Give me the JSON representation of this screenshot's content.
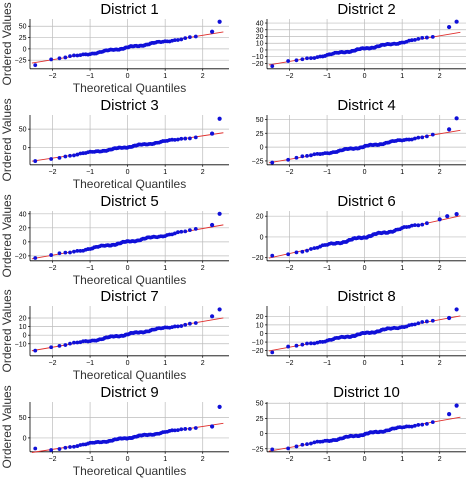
{
  "colors": {
    "points": "#1010d8",
    "fit_line": "#e0302e",
    "grid": "#bcbcbc",
    "axis": "#000000"
  },
  "chart_data": [
    {
      "type": "scatter",
      "title": "District 1",
      "xlabel": "Theoretical Quantiles",
      "ylabel": "Ordered Values",
      "x_range": [
        -2.6,
        2.7
      ],
      "y_range": [
        -44,
        66
      ],
      "xticks": [
        -2,
        -1,
        0,
        1,
        2
      ],
      "yticks": [
        -25,
        0,
        25,
        50
      ],
      "fit": {
        "slope": 13.5,
        "intercept": 3
      },
      "n": 72,
      "grid": true,
      "x_min": -2.45,
      "x_max": 2.45,
      "tail_points": [
        {
          "x": 2.25,
          "y": 38
        },
        {
          "x": 2.45,
          "y": 60
        }
      ],
      "low_point": {
        "x": -2.45,
        "y": -36
      }
    },
    {
      "type": "scatter",
      "title": "District 2",
      "xlabel": "",
      "ylabel": "",
      "x_range": [
        -2.6,
        2.7
      ],
      "y_range": [
        -28,
        46
      ],
      "xticks": [
        -2,
        -1,
        0,
        1,
        2
      ],
      "yticks": [
        -20,
        -10,
        0,
        10,
        20,
        30,
        40
      ],
      "fit": {
        "slope": 9.5,
        "intercept": 2
      },
      "n": 72,
      "grid": true,
      "x_min": -2.45,
      "x_max": 2.45,
      "tail_points": [
        {
          "x": 2.25,
          "y": 34
        },
        {
          "x": 2.45,
          "y": 42
        }
      ],
      "low_point": {
        "x": -2.45,
        "y": -24
      }
    },
    {
      "type": "scatter",
      "title": "District 3",
      "xlabel": "Theoretical Quantiles",
      "ylabel": "Ordered Values",
      "x_range": [
        -2.6,
        2.7
      ],
      "y_range": [
        -46,
        88
      ],
      "xticks": [
        -2,
        -1,
        0,
        1,
        2
      ],
      "yticks": [
        0,
        50
      ],
      "fit": {
        "slope": 15,
        "intercept": 2
      },
      "n": 72,
      "grid": true,
      "x_min": -2.45,
      "x_max": 2.45,
      "tail_points": [
        {
          "x": 2.25,
          "y": 38
        },
        {
          "x": 2.45,
          "y": 78
        }
      ],
      "low_point": {
        "x": -2.45,
        "y": -36
      }
    },
    {
      "type": "scatter",
      "title": "District 4",
      "xlabel": "",
      "ylabel": "",
      "x_range": [
        -2.6,
        2.7
      ],
      "y_range": [
        -32,
        58
      ],
      "xticks": [
        -2,
        -1,
        0,
        1,
        2
      ],
      "yticks": [
        -25,
        0,
        25,
        50
      ],
      "fit": {
        "slope": 11.5,
        "intercept": 1
      },
      "n": 72,
      "grid": true,
      "x_min": -2.45,
      "x_max": 2.45,
      "tail_points": [
        {
          "x": 2.25,
          "y": 32
        },
        {
          "x": 2.45,
          "y": 52
        }
      ],
      "low_point": {
        "x": -2.45,
        "y": -28
      }
    },
    {
      "type": "scatter",
      "title": "District 5",
      "xlabel": "Theoretical Quantiles",
      "ylabel": "Ordered Values",
      "x_range": [
        -2.6,
        2.7
      ],
      "y_range": [
        -27,
        44
      ],
      "xticks": [
        -2,
        -1,
        0,
        1,
        2
      ],
      "yticks": [
        -20,
        0,
        20,
        40
      ],
      "fit": {
        "slope": 9.5,
        "intercept": 0
      },
      "n": 72,
      "grid": true,
      "x_min": -2.45,
      "x_max": 2.45,
      "tail_points": [
        {
          "x": 2.25,
          "y": 24
        },
        {
          "x": 2.45,
          "y": 40
        }
      ],
      "low_point": {
        "x": -2.45,
        "y": -23
      }
    },
    {
      "type": "scatter",
      "title": "District 6",
      "xlabel": "",
      "ylabel": "",
      "x_range": [
        -2.6,
        2.7
      ],
      "y_range": [
        -23,
        25
      ],
      "xticks": [
        -2,
        -1,
        0,
        1,
        2
      ],
      "yticks": [
        -20,
        0,
        20
      ],
      "fit": {
        "slope": 8,
        "intercept": 0
      },
      "n": 72,
      "grid": true,
      "x_min": -2.45,
      "x_max": 2.45,
      "tail_points": [
        {
          "x": 2.0,
          "y": 17
        },
        {
          "x": 2.2,
          "y": 20
        },
        {
          "x": 2.45,
          "y": 22
        }
      ],
      "low_point": {
        "x": -2.45,
        "y": -18
      }
    },
    {
      "type": "scatter",
      "title": "District 7",
      "xlabel": "Theoretical Quantiles",
      "ylabel": "Ordered Values",
      "x_range": [
        -2.6,
        2.7
      ],
      "y_range": [
        -24,
        34
      ],
      "xticks": [
        -2,
        -1,
        0,
        1,
        2
      ],
      "yticks": [
        -10,
        0,
        10,
        20
      ],
      "fit": {
        "slope": 7.5,
        "intercept": 1
      },
      "n": 72,
      "grid": true,
      "x_min": -2.45,
      "x_max": 2.45,
      "tail_points": [
        {
          "x": 2.25,
          "y": 22
        },
        {
          "x": 2.45,
          "y": 30
        }
      ],
      "low_point": {
        "x": -2.45,
        "y": -18
      }
    },
    {
      "type": "scatter",
      "title": "District 8",
      "xlabel": "",
      "ylabel": "",
      "x_range": [
        -2.6,
        2.7
      ],
      "y_range": [
        -26,
        32
      ],
      "xticks": [
        -2,
        -1,
        0,
        1,
        2
      ],
      "yticks": [
        -20,
        -10,
        0,
        10,
        20
      ],
      "fit": {
        "slope": 8,
        "intercept": 0
      },
      "n": 72,
      "grid": true,
      "x_min": -2.45,
      "x_max": 2.45,
      "tail_points": [
        {
          "x": 2.25,
          "y": 18
        },
        {
          "x": 2.45,
          "y": 28
        }
      ],
      "low_point": {
        "x": -2.45,
        "y": -22
      }
    },
    {
      "type": "scatter",
      "title": "District 9",
      "xlabel": "Theoretical Quantiles",
      "ylabel": "Ordered Values",
      "x_range": [
        -2.6,
        2.7
      ],
      "y_range": [
        -34,
        88
      ],
      "xticks": [
        -2,
        -1,
        0,
        1,
        2
      ],
      "yticks": [
        0,
        50
      ],
      "fit": {
        "slope": 14,
        "intercept": 0
      },
      "n": 72,
      "grid": true,
      "x_min": -2.45,
      "x_max": 2.45,
      "tail_points": [
        {
          "x": 2.25,
          "y": 28
        },
        {
          "x": 2.45,
          "y": 76
        }
      ],
      "low_point": {
        "x": -2.45,
        "y": -26
      }
    },
    {
      "type": "scatter",
      "title": "District 10",
      "xlabel": "",
      "ylabel": "",
      "x_range": [
        -2.6,
        2.7
      ],
      "y_range": [
        -30,
        52
      ],
      "xticks": [
        -2,
        -1,
        0,
        1,
        2
      ],
      "yticks": [
        -25,
        0,
        25,
        50
      ],
      "fit": {
        "slope": 11,
        "intercept": -1
      },
      "n": 72,
      "grid": true,
      "x_min": -2.45,
      "x_max": 2.45,
      "tail_points": [
        {
          "x": 2.25,
          "y": 32
        },
        {
          "x": 2.45,
          "y": 46
        }
      ],
      "low_point": {
        "x": -2.45,
        "y": -26
      }
    }
  ]
}
